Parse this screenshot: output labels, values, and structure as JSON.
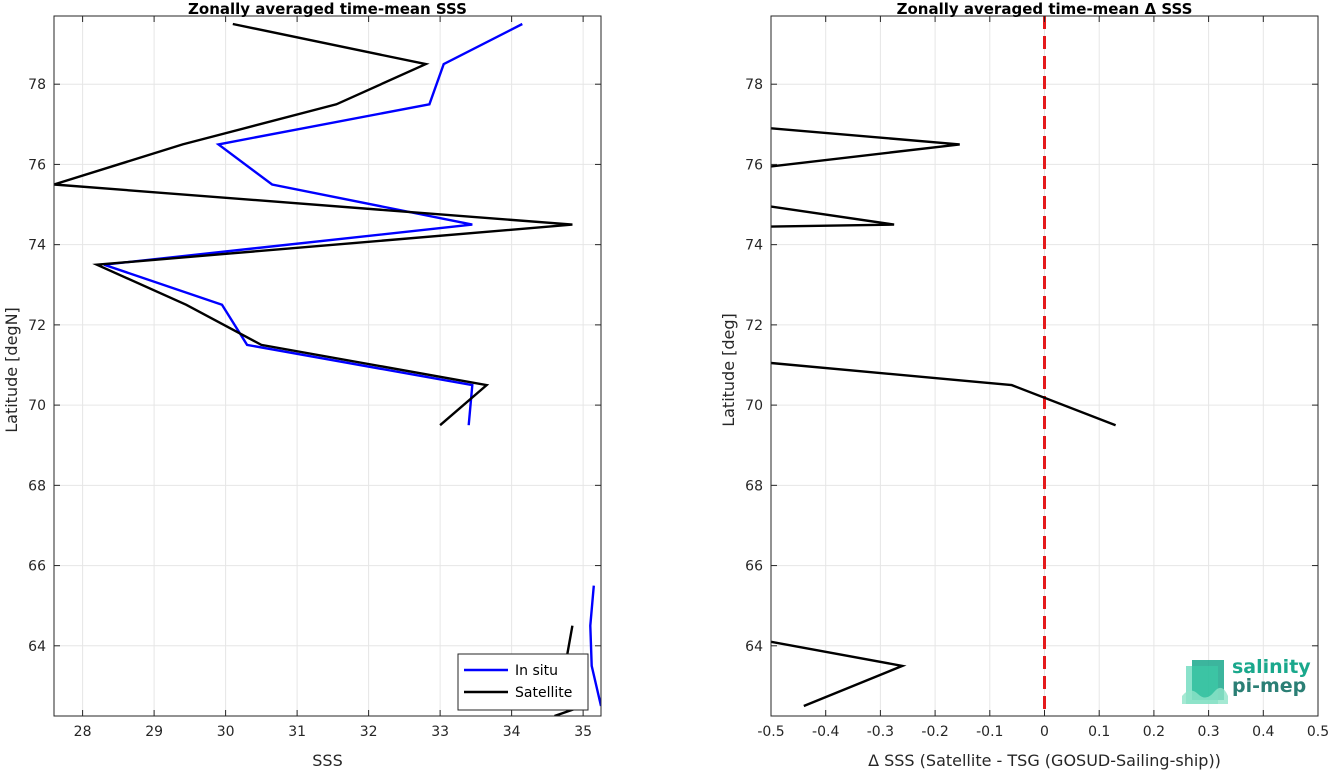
{
  "chart_data": [
    {
      "type": "line",
      "title": "Zonally averaged time-mean SSS",
      "xlabel": "SSS",
      "ylabel": "Latitude [degN]",
      "xlim": [
        27.6,
        35.25
      ],
      "ylim": [
        62.25,
        79.7
      ],
      "xticks": [
        28,
        29,
        30,
        31,
        32,
        33,
        34,
        35
      ],
      "yticks": [
        64,
        66,
        68,
        70,
        72,
        74,
        76,
        78
      ],
      "grid": true,
      "legend_position": "bottom-right",
      "series": [
        {
          "name": "In situ",
          "color": "#0000ff",
          "segments": [
            [
              [
                34.15,
                79.5
              ],
              [
                33.05,
                78.5
              ],
              [
                32.85,
                77.5
              ],
              [
                29.9,
                76.5
              ],
              [
                30.65,
                75.5
              ],
              [
                33.45,
                74.5
              ],
              [
                28.3,
                73.5
              ],
              [
                29.95,
                72.5
              ],
              [
                30.3,
                71.5
              ],
              [
                33.45,
                70.5
              ],
              [
                33.4,
                69.5
              ]
            ],
            [
              [
                35.15,
                65.5
              ],
              [
                35.1,
                64.5
              ],
              [
                35.12,
                63.5
              ],
              [
                35.25,
                62.5
              ]
            ]
          ]
        },
        {
          "name": "Satellite",
          "color": "#000000",
          "segments": [
            [
              [
                30.1,
                79.5
              ],
              [
                32.8,
                78.5
              ],
              [
                31.55,
                77.5
              ],
              [
                29.4,
                76.5
              ],
              [
                27.6,
                75.5
              ],
              [
                34.85,
                74.5
              ],
              [
                28.2,
                73.5
              ],
              [
                29.45,
                72.5
              ],
              [
                30.5,
                71.5
              ],
              [
                33.65,
                70.5
              ],
              [
                33.0,
                69.5
              ]
            ],
            [
              [
                34.85,
                64.5
              ],
              [
                34.75,
                63.5
              ],
              [
                35.0,
                62.5
              ],
              [
                34.6,
                62.25
              ]
            ]
          ]
        }
      ]
    },
    {
      "type": "line",
      "title": "Zonally averaged time-mean Δ SSS",
      "xlabel": "Δ SSS (Satellite - TSG (GOSUD-Sailing-ship))",
      "ylabel": "Latitude [deg]",
      "xlim": [
        -0.5,
        0.5
      ],
      "ylim": [
        62.25,
        79.7
      ],
      "xticks": [
        -0.5,
        -0.4,
        -0.3,
        -0.2,
        -0.1,
        0,
        0.1,
        0.2,
        0.3,
        0.4,
        0.5
      ],
      "xtick_labels": [
        "-0.5",
        "-0.4",
        "-0.3",
        "-0.2",
        "-0.1",
        "0",
        "0.1",
        "0.2",
        "0.3",
        "0.4",
        "0.5"
      ],
      "yticks": [
        64,
        66,
        68,
        70,
        72,
        74,
        76,
        78
      ],
      "grid": true,
      "reference_line": {
        "x": 0,
        "color": "#e41a1c",
        "style": "dashed"
      },
      "series": [
        {
          "color": "#000000",
          "segments": [
            [
              [
                -0.5,
                76.9
              ],
              [
                -0.155,
                76.5
              ],
              [
                -0.5,
                75.95
              ]
            ],
            [
              [
                -0.5,
                74.95
              ],
              [
                -0.275,
                74.5
              ],
              [
                -0.5,
                74.45
              ]
            ],
            [
              [
                -0.5,
                71.05
              ],
              [
                -0.06,
                70.5
              ],
              [
                0.13,
                69.5
              ]
            ],
            [
              [
                -0.5,
                64.1
              ],
              [
                -0.26,
                63.5
              ],
              [
                -0.44,
                62.5
              ]
            ]
          ]
        }
      ]
    }
  ],
  "logo": {
    "line1": "salinity",
    "line2": "pi-mep"
  }
}
